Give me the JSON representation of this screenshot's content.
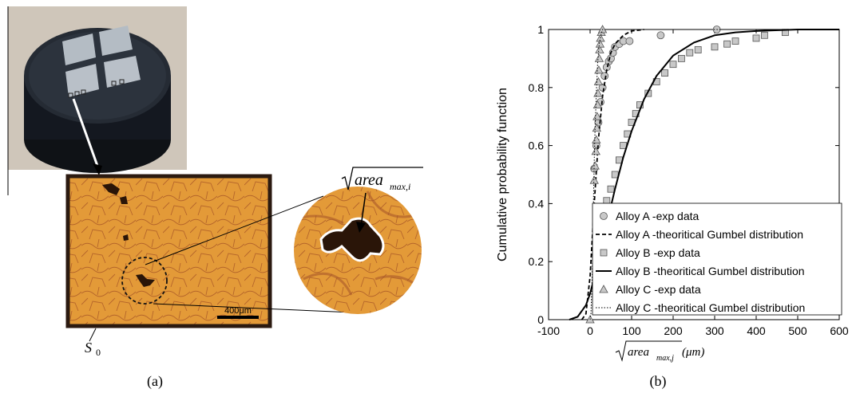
{
  "panel_a": {
    "caption": "(a)",
    "scale_bar": "400μm",
    "surface_label": "S",
    "surface_sub": "0",
    "defect_label_root": "area",
    "defect_label_sub": "max,i"
  },
  "panel_b": {
    "caption": "(b)",
    "xlabel_root": "area",
    "xlabel_sub": "max,j",
    "xlabel_unit": "(μm)"
  },
  "colors": {
    "micro_bg": "#e39a38",
    "grain_line": "#b5652a",
    "defect": "#2a1508"
  },
  "chart_data": {
    "type": "scatter",
    "ylabel": "Cumulative probability function",
    "xlim": [
      -100,
      600
    ],
    "ylim": [
      0,
      1
    ],
    "xticks": [
      "-100",
      "0",
      "100",
      "200",
      "300",
      "400",
      "500",
      "600"
    ],
    "yticks": [
      "0",
      "0.2",
      "0.4",
      "0.6",
      "0.8",
      "1"
    ],
    "grid": false,
    "legend_position": "bottom-right",
    "legend": [
      "Alloy A -exp data",
      "Alloy A -theoritical Gumbel distribution",
      "Alloy B -exp data",
      "Alloy B -theoritical Gumbel distribution",
      "Alloy C -exp data",
      "Alloy C -theoritical Gumbel distribution"
    ],
    "series": [
      {
        "name": "Alloy A -exp data",
        "marker": "circle",
        "x": [
          10,
          15,
          20,
          25,
          30,
          35,
          40,
          45,
          50,
          55,
          60,
          70,
          80,
          95,
          170,
          305
        ],
        "y": [
          0.52,
          0.6,
          0.68,
          0.75,
          0.8,
          0.84,
          0.87,
          0.89,
          0.9,
          0.92,
          0.94,
          0.95,
          0.96,
          0.96,
          0.98,
          1.0
        ]
      },
      {
        "name": "Alloy A -theoritical Gumbel distribution",
        "line": "dashed",
        "x": [
          -20,
          -10,
          0,
          10,
          20,
          30,
          40,
          50,
          60,
          80,
          100,
          130
        ],
        "y": [
          0.0,
          0.02,
          0.15,
          0.4,
          0.62,
          0.77,
          0.86,
          0.92,
          0.95,
          0.98,
          0.995,
          1.0
        ]
      },
      {
        "name": "Alloy B -exp data",
        "marker": "square",
        "x": [
          15,
          20,
          25,
          30,
          35,
          40,
          50,
          60,
          70,
          80,
          90,
          100,
          110,
          120,
          140,
          160,
          180,
          200,
          220,
          240,
          260,
          300,
          330,
          350,
          400,
          420,
          470
        ],
        "y": [
          0.2,
          0.25,
          0.29,
          0.33,
          0.37,
          0.41,
          0.45,
          0.5,
          0.55,
          0.6,
          0.64,
          0.68,
          0.71,
          0.74,
          0.78,
          0.82,
          0.85,
          0.88,
          0.9,
          0.92,
          0.93,
          0.94,
          0.95,
          0.96,
          0.97,
          0.98,
          0.99
        ]
      },
      {
        "name": "Alloy B -theoritical Gumbel distribution",
        "line": "solid",
        "x": [
          -50,
          -30,
          -10,
          0,
          20,
          40,
          60,
          80,
          100,
          130,
          160,
          200,
          250,
          300,
          350,
          400,
          500,
          600
        ],
        "y": [
          0.0,
          0.01,
          0.05,
          0.09,
          0.2,
          0.33,
          0.45,
          0.56,
          0.65,
          0.76,
          0.84,
          0.91,
          0.955,
          0.98,
          0.99,
          0.995,
          1.0,
          1.0
        ]
      },
      {
        "name": "Alloy C -exp data",
        "marker": "triangle",
        "x": [
          0,
          10,
          12,
          14,
          15,
          16,
          17,
          18,
          19,
          20,
          21,
          22,
          23,
          24,
          25,
          27,
          30
        ],
        "y": [
          0.0,
          0.48,
          0.53,
          0.58,
          0.62,
          0.66,
          0.7,
          0.74,
          0.78,
          0.82,
          0.86,
          0.9,
          0.93,
          0.95,
          0.97,
          0.99,
          1.0
        ]
      },
      {
        "name": "Alloy C -theoritical Gumbel distribution",
        "line": "dotted",
        "x": [
          0,
          2,
          5,
          8,
          10,
          12,
          15,
          18,
          22,
          26,
          30,
          100,
          300,
          600
        ],
        "y": [
          0.0,
          0.02,
          0.15,
          0.4,
          0.55,
          0.66,
          0.78,
          0.88,
          0.95,
          0.98,
          1.0,
          1.0,
          1.0,
          1.0
        ]
      }
    ]
  }
}
